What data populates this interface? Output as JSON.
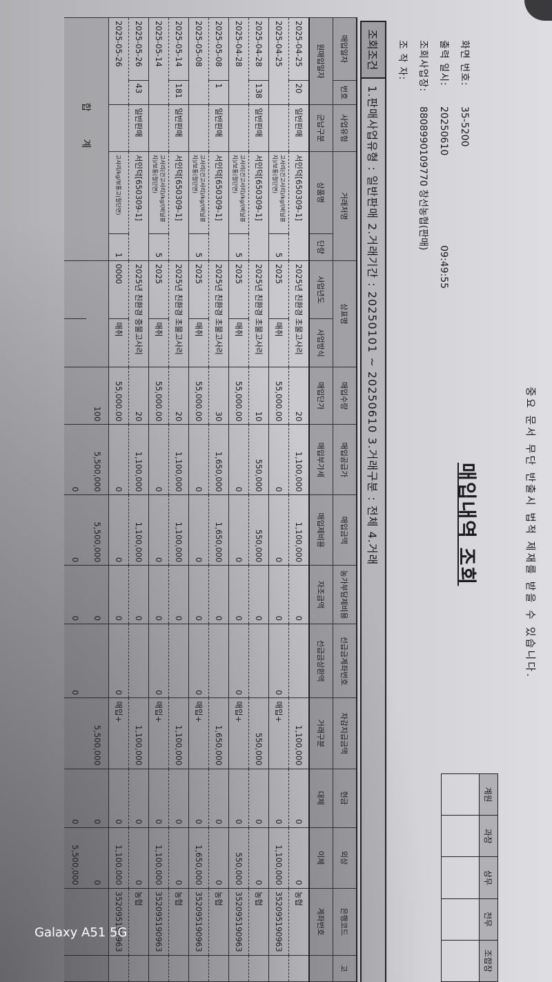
{
  "warning": "중요 문서 무단 반출시 법적 제재를 받을 수 있습니다.",
  "title": "매입내역 조회",
  "info": {
    "screen_no_label": "화면 번호:",
    "screen_no": "35-5200",
    "print_label": "출력 일시:",
    "print_date": "20250610",
    "print_time": "09:49:55",
    "branch_label": "조회사업장:",
    "branch": "8808990109770 창선농협(판매)",
    "operator_label": "조 작 자:"
  },
  "approval": [
    "계원",
    "과장",
    "상무",
    "전무",
    "조합장"
  ],
  "conditions": {
    "label": "조회조건",
    "text": "1.판매사업유형 : 일반판매  2.거래기간 : 20250101 ~ 20250610  3.거래구분 : 전체  4.거래"
  },
  "headers": {
    "row1": [
      "매입일자",
      "번호",
      "사업유형",
      "거래처명",
      "상표명",
      "매입수량",
      "매입공급가",
      "매입금액",
      "농가부담제비용",
      "선급금계좌번호",
      "차감지급금액",
      "현금",
      "외상",
      "은행코드",
      "고"
    ],
    "row2": [
      "원매입일자",
      "군납구분",
      "상품명",
      "단량",
      "사업년도",
      "사업방식",
      "매입단가",
      "매입부가세",
      "매입제비용",
      "자조금액",
      "선급금상환액",
      "거래구분",
      "대체",
      "이체",
      "계좌번호",
      ""
    ]
  },
  "records": [
    {
      "line1": [
        "2025-04-25",
        "20",
        "일반판매",
        "서인덕[650309-1]",
        "2025년 친환경 초물고사리",
        "20",
        "1,100,000",
        "1,100,000",
        "0",
        "",
        "1,100,000",
        "0",
        "0",
        "농협",
        ""
      ],
      "line2": [
        "2025-04-25",
        "",
        "고사리(건고사리)/kg/(비닐봉지)/보통(절단면)",
        "5",
        "2025",
        "매취",
        "55,000.00",
        "0",
        "0",
        "0",
        "0",
        "매입+",
        "0",
        "1,100,000",
        "352095190963",
        ""
      ]
    },
    {
      "line1": [
        "2025-04-28",
        "138",
        "일반판매",
        "서인덕[650309-1]",
        "2025년 친환경 초물고사리",
        "10",
        "550,000",
        "550,000",
        "0",
        "",
        "550,000",
        "0",
        "0",
        "농협",
        ""
      ],
      "line2": [
        "2025-04-28",
        "",
        "고사리(건고사리)/kg/(비닐봉지)/보통(절단면)",
        "5",
        "2025",
        "매취",
        "55,000.00",
        "0",
        "0",
        "0",
        "0",
        "매입+",
        "0",
        "550,000",
        "352095190963",
        ""
      ]
    },
    {
      "line1": [
        "2025-05-08",
        "1",
        "일반판매",
        "서인덕[650309-1]",
        "2025년 친환경 초물고사리",
        "30",
        "1,650,000",
        "1,650,000",
        "0",
        "",
        "1,650,000",
        "0",
        "0",
        "농협",
        ""
      ],
      "line2": [
        "2025-05-08",
        "",
        "고사리(건고사리)/kg/(비닐봉지)/보통(절단면)",
        "5",
        "2025",
        "매취",
        "55,000.00",
        "0",
        "0",
        "0",
        "0",
        "매입+",
        "0",
        "1,650,000",
        "352095190963",
        ""
      ]
    },
    {
      "line1": [
        "2025-05-14",
        "181",
        "일반판매",
        "서인덕[650309-1]",
        "2025년 친환경 초물고사리",
        "20",
        "1,100,000",
        "1,100,000",
        "0",
        "",
        "1,100,000",
        "0",
        "0",
        "농협",
        ""
      ],
      "line2": [
        "2025-05-14",
        "",
        "고사리(건고사리)/kg/(비닐봉지)/보통(절단면)",
        "5",
        "2025",
        "매취",
        "55,000.00",
        "0",
        "0",
        "0",
        "0",
        "매입+",
        "0",
        "1,100,000",
        "352095190963",
        ""
      ]
    },
    {
      "line1": [
        "2025-05-26",
        "43",
        "일반판매",
        "서인덕[650309-1]",
        "2025년 친환경 중물고사리",
        "20",
        "1,100,000",
        "1,100,000",
        "0",
        "",
        "1,100,000",
        "0",
        "0",
        "농협",
        ""
      ],
      "line2": [
        "2025-05-26",
        "",
        "고사리/kg/보통고(절단면)",
        "1",
        "0000",
        "매취",
        "55,000.00",
        "0",
        "0",
        "0",
        "0",
        "매입+",
        "0",
        "1,100,000",
        "352095190963",
        ""
      ]
    }
  ],
  "total": {
    "label": "합계",
    "line1": [
      "",
      "100",
      "5,500,000",
      "5,500,000",
      "0",
      "",
      "5,500,000",
      "0",
      "0",
      "",
      ""
    ],
    "line2": [
      "",
      "",
      "",
      "0",
      "0",
      "0",
      "0",
      "",
      "0",
      "5,500,000",
      "",
      ""
    ]
  },
  "watermark": "Galaxy A51 5G"
}
